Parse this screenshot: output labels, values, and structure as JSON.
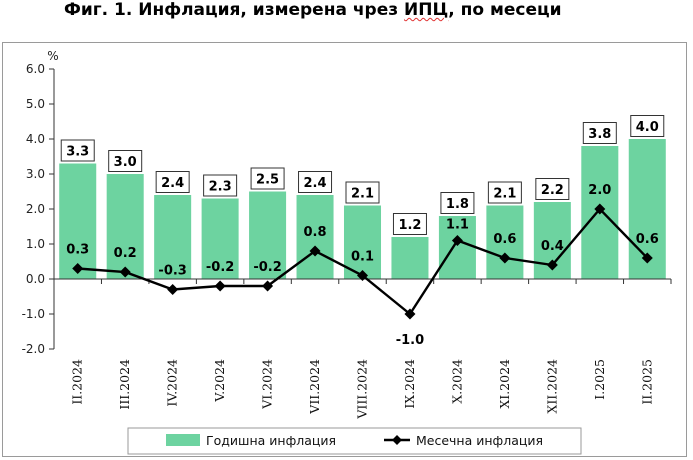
{
  "title_prefix": "Фиг. 1. Инфлация, измерена чрез ",
  "title_spell": "ИПЦ",
  "title_suffix": ", по месеци",
  "chart_data": {
    "type": "bar",
    "categories": [
      "II.2024",
      "III.2024",
      "IV.2024",
      "V.2024",
      "VI.2024",
      "VII.2024",
      "VIII.2024",
      "IX.2024",
      "X.2024",
      "XI.2024",
      "XII.2024",
      "I.2025",
      "II.2025"
    ],
    "ylabel": "%",
    "ylim": [
      -2.0,
      6.0
    ],
    "yticks": [
      "6.0",
      "5.0",
      "4.0",
      "3.0",
      "2.0",
      "1.0",
      "0.0",
      "-1.0",
      "-2.0"
    ],
    "grid": false,
    "legend_position": "bottom",
    "series": [
      {
        "name": "Годишна инфлация",
        "type": "bar",
        "color": "#6dd3a0",
        "values": [
          3.3,
          3.0,
          2.4,
          2.3,
          2.5,
          2.4,
          2.1,
          1.2,
          1.8,
          2.1,
          2.2,
          3.8,
          4.0
        ],
        "labels": [
          "3.3",
          "3.0",
          "2.4",
          "2.3",
          "2.5",
          "2.4",
          "2.1",
          "1.2",
          "1.8",
          "2.1",
          "2.2",
          "3.8",
          "4.0"
        ]
      },
      {
        "name": "Месечна инфлация",
        "type": "line",
        "color": "#000000",
        "marker": "diamond",
        "values": [
          0.3,
          0.2,
          -0.3,
          -0.2,
          -0.2,
          0.8,
          0.1,
          -1.0,
          1.1,
          0.6,
          0.4,
          2.0,
          0.6
        ],
        "labels": [
          "0.3",
          "0.2",
          "-0.3",
          "-0.2",
          "-0.2",
          "0.8",
          "0.1",
          "-1.0",
          "1.1",
          "0.6",
          "0.4",
          "2.0",
          "0.6"
        ]
      }
    ]
  }
}
